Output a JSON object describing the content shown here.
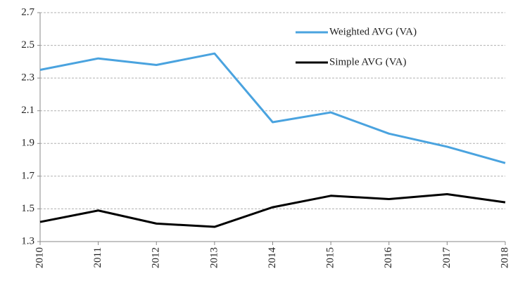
{
  "chart_data": {
    "type": "line",
    "categories": [
      "2010",
      "2011",
      "2012",
      "2013",
      "2014",
      "2015",
      "2016",
      "2017",
      "2018"
    ],
    "series": [
      {
        "name": "Weighted AVG (VA)",
        "color": "#4aa3df",
        "values": [
          2.35,
          2.42,
          2.38,
          2.45,
          2.03,
          2.09,
          1.96,
          1.88,
          1.78
        ]
      },
      {
        "name": "Simple AVG (VA)",
        "color": "#000000",
        "values": [
          1.42,
          1.49,
          1.41,
          1.39,
          1.51,
          1.58,
          1.56,
          1.59,
          1.54
        ]
      }
    ],
    "ylim": [
      1.3,
      2.7
    ],
    "yticks": [
      1.3,
      1.5,
      1.7,
      1.9,
      2.1,
      2.3,
      2.5,
      2.7
    ],
    "grid": true,
    "legend": "upper-right"
  }
}
